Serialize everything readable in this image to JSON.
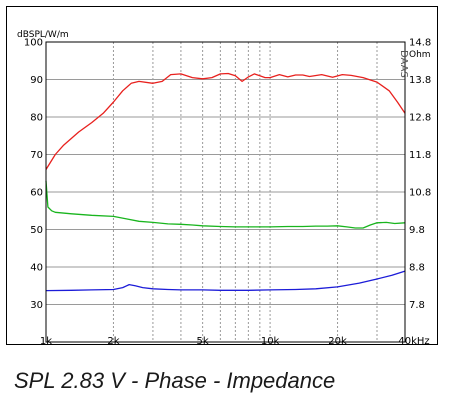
{
  "caption": "SPL 2.83 V - Phase - Impedance",
  "chart_data": {
    "type": "line",
    "left_axis_unit": "dBSPL/W/m",
    "right_axis_unit": "Ohm",
    "brand": "DAAS",
    "x_ticks": [
      "1k",
      "2k",
      "5k",
      "10k",
      "20k",
      "40kHz"
    ],
    "x_scale": "log",
    "xlim": [
      1000,
      40000
    ],
    "y_left_ticks": [
      100,
      90,
      80,
      70,
      60,
      50,
      40,
      30
    ],
    "y_left_lim": [
      20,
      100
    ],
    "y_right_ticks": [
      "14.8",
      "13.8",
      "12.8",
      "11.8",
      "10.8",
      "9.8",
      "8.8",
      "7.8"
    ],
    "y_right_lim": [
      6.8,
      14.8
    ],
    "grid": true,
    "colors": {
      "spl": "#e8211e",
      "phase": "#19b51e",
      "impedance": "#1c1cd8",
      "grid": "#9a9a9a"
    },
    "series": [
      {
        "key": "spl",
        "x": [
          1000,
          1100,
          1200,
          1400,
          1600,
          1800,
          2000,
          2200,
          2400,
          2600,
          3000,
          3300,
          3600,
          4000,
          4500,
          5000,
          5500,
          6000,
          6500,
          7000,
          7500,
          8000,
          8500,
          9000,
          9500,
          10000,
          11000,
          12000,
          13000,
          14000,
          15000,
          17000,
          19000,
          21000,
          23000,
          26000,
          30000,
          34000,
          37000,
          40000
        ],
        "y": [
          66,
          70,
          72.5,
          76,
          78.5,
          81,
          84,
          87,
          89,
          89.5,
          89,
          89.5,
          91.3,
          91.5,
          90.5,
          90.2,
          90.5,
          91.5,
          91.6,
          91,
          89.5,
          90.7,
          91.5,
          91,
          90.5,
          90.5,
          91.3,
          90.7,
          91.2,
          91.2,
          90.8,
          91.3,
          90.6,
          91.3,
          91.1,
          90.5,
          89.3,
          87,
          84,
          81
        ]
      },
      {
        "key": "phase",
        "x": [
          1000,
          1020,
          1060,
          1100,
          1300,
          1600,
          2000,
          2300,
          2600,
          3000,
          3500,
          4000,
          4500,
          5000,
          6000,
          7000,
          8000,
          9000,
          10000,
          12000,
          14000,
          16000,
          18000,
          20000,
          22000,
          24000,
          26000,
          28000,
          30000,
          33000,
          36000,
          40000
        ],
        "y": [
          63,
          56,
          55,
          54.6,
          54.2,
          53.8,
          53.5,
          52.8,
          52.2,
          51.9,
          51.5,
          51.4,
          51.2,
          51,
          50.8,
          50.7,
          50.7,
          50.7,
          50.7,
          50.8,
          50.8,
          50.9,
          50.9,
          51,
          50.7,
          50.4,
          50.4,
          51.2,
          51.8,
          51.9,
          51.6,
          51.8
        ]
      },
      {
        "key": "impedance",
        "x": [
          1000,
          1300,
          1600,
          2000,
          2200,
          2350,
          2500,
          2700,
          3000,
          3500,
          4000,
          5000,
          6000,
          8000,
          10000,
          13000,
          16000,
          20000,
          25000,
          30000,
          35000,
          40000
        ],
        "y": [
          33.7,
          33.8,
          33.9,
          34,
          34.5,
          35.3,
          35,
          34.5,
          34.2,
          34,
          33.9,
          33.9,
          33.8,
          33.8,
          33.9,
          34,
          34.2,
          34.7,
          35.7,
          36.8,
          37.8,
          38.9
        ]
      }
    ]
  }
}
